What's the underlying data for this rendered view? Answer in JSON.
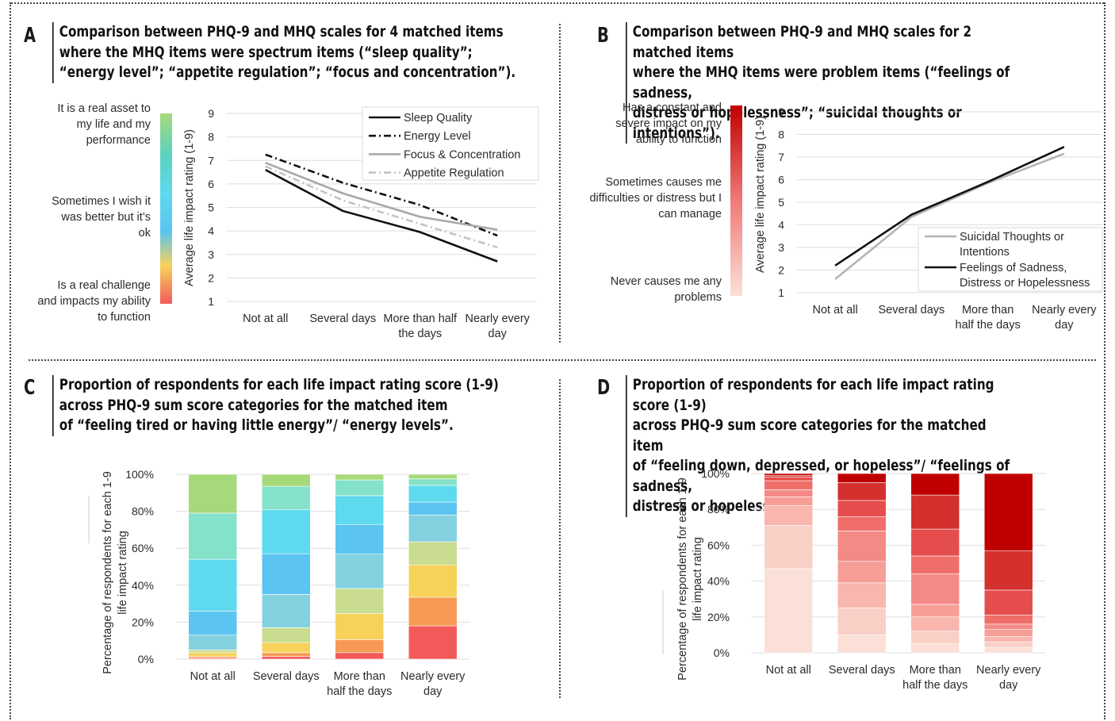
{
  "colors": {
    "asset": "#a6d97a",
    "teal": "#5ad3c0",
    "sky": "#5bc4f0",
    "yellow": "#f7d25a",
    "red": "#f25a5a",
    "red_dark": "#c00000",
    "red_light": "#fbe0d8",
    "line_dark": "#111111",
    "line_grey": "#a8a8a8",
    "line_lightgrey": "#c4c4c4"
  },
  "panels": {
    "A": {
      "letter": "A",
      "heading": "Comparison between PHQ-9 and MHQ scales for 4 matched items\nwhere the MHQ items were spectrum items (“sleep quality”;\n“energy level”; “appetite regulation”; “focus and concentration”).",
      "scale_top": "It is a real asset to my life and my performance",
      "scale_mid": "Sometimes I wish it was better but it’s ok",
      "scale_bottom": "Is a real challenge and impacts my ability to function"
    },
    "B": {
      "letter": "B",
      "heading": "Comparison between PHQ-9 and MHQ scales for 2 matched items\nwhere the MHQ items were problem items (“feelings of sadness,\ndistress or hopelessness”; “suicidal thoughts or intentions”).",
      "scale_top": "Has a constant and severe impact on my ability to function",
      "scale_mid": "Sometimes causes me difficulties or distress but I can manage",
      "scale_bottom": "Never causes me any problems"
    },
    "C": {
      "letter": "C",
      "heading": "Proportion of respondents for each life impact rating score (1-9)\nacross PHQ-9 sum score categories for the matched item\nof “feeling tired or having little energy”/ “energy levels”."
    },
    "D": {
      "letter": "D",
      "heading": "Proportion of respondents for each life impact rating score (1-9)\nacross PHQ-9 sum score categories for the matched item\nof “feeling down, depressed, or hopeless”/ “feelings of sadness,\ndistress or hopelessness”."
    }
  },
  "chart_data": [
    {
      "id": "A",
      "type": "line",
      "categories": [
        "Not at all",
        "Several days",
        "More than half the days",
        "Nearly every day"
      ],
      "ylabel": "Average life impact rating (1-9)",
      "ylim": [
        1,
        9
      ],
      "yticks": [
        "1",
        "2",
        "3",
        "4",
        "5",
        "6",
        "7",
        "8",
        "9"
      ],
      "grid": true,
      "legend": "top-right",
      "series": [
        {
          "name": "Sleep Quality",
          "values": [
            6.6,
            4.85,
            3.95,
            2.7
          ],
          "color": "#111111",
          "style": "solid"
        },
        {
          "name": "Energy Level",
          "values": [
            7.25,
            6.05,
            5.1,
            3.8
          ],
          "color": "#111111",
          "style": "dashdot"
        },
        {
          "name": "Focus & Concentration",
          "values": [
            6.9,
            5.6,
            4.6,
            4.05
          ],
          "color": "#a8a8a8",
          "style": "solid"
        },
        {
          "name": "Appetite Regulation",
          "values": [
            6.75,
            5.3,
            4.3,
            3.3
          ],
          "color": "#c4c4c4",
          "style": "dashdot"
        }
      ]
    },
    {
      "id": "B",
      "type": "line",
      "categories": [
        "Not at all",
        "Several days",
        "More than half the days",
        "Nearly every day"
      ],
      "ylabel": "Average life impact rating (1-9)",
      "ylim": [
        1,
        9
      ],
      "yticks": [
        "1",
        "2",
        "3",
        "4",
        "5",
        "6",
        "7",
        "8",
        "9"
      ],
      "grid": true,
      "legend": "bottom-right",
      "series": [
        {
          "name": "Suicidal Thoughts or Intentions",
          "values": [
            1.6,
            4.35,
            5.85,
            7.15
          ],
          "color": "#b4b4b4",
          "style": "solid"
        },
        {
          "name": "Feelings of Sadness, Distress or Hopelessness",
          "values": [
            2.2,
            4.45,
            5.9,
            7.45
          ],
          "color": "#111111",
          "style": "solid"
        }
      ]
    },
    {
      "id": "C",
      "type": "bar",
      "stacked": true,
      "categories": [
        "Not at all",
        "Several days",
        "More than half the days",
        "Nearly every day"
      ],
      "ylabel": "Percentage of respondents for each 1-9 life impact rating",
      "ylim": [
        0,
        100
      ],
      "yticks": [
        "0%",
        "20%",
        "40%",
        "60%",
        "80%",
        "100%"
      ],
      "grid": true,
      "stack_colors": [
        "#f25a5a",
        "#f89a55",
        "#f7d25a",
        "#c9dc8f",
        "#84d2df",
        "#5bc4f0",
        "#5fd9ee",
        "#83e2c9",
        "#a6d97a"
      ],
      "series": [
        {
          "rating": 1,
          "values": [
            0.5,
            1.5,
            3.5,
            18
          ]
        },
        {
          "rating": 2,
          "values": [
            1,
            2,
            7,
            15.5
          ]
        },
        {
          "rating": 3,
          "values": [
            2,
            5.5,
            14,
            17.5
          ]
        },
        {
          "rating": 4,
          "values": [
            1.5,
            8,
            13.5,
            12.5
          ]
        },
        {
          "rating": 5,
          "values": [
            8,
            18,
            18.5,
            14.5
          ]
        },
        {
          "rating": 6,
          "values": [
            13,
            22,
            16,
            7
          ]
        },
        {
          "rating": 7,
          "values": [
            28,
            24,
            15.5,
            9
          ]
        },
        {
          "rating": 8,
          "values": [
            25,
            12.5,
            8.5,
            3.5
          ]
        },
        {
          "rating": 9,
          "values": [
            21,
            6.5,
            3,
            2.5
          ]
        }
      ]
    },
    {
      "id": "D",
      "type": "bar",
      "stacked": true,
      "categories": [
        "Not at all",
        "Several days",
        "More than half the days",
        "Nearly every day"
      ],
      "ylabel": "Percentage of respondents for each 1-9 life impact rating",
      "ylim": [
        0,
        100
      ],
      "yticks": [
        "0%",
        "20%",
        "40%",
        "60%",
        "80%",
        "100%"
      ],
      "grid": true,
      "stack_colors": [
        "#fbe0d8",
        "#f9cfc6",
        "#f9b6ae",
        "#f79e97",
        "#f48a86",
        "#ef6e6a",
        "#e54d4c",
        "#d3302e",
        "#c00000"
      ],
      "series": [
        {
          "rating": 1,
          "values": [
            47,
            10,
            5,
            3
          ]
        },
        {
          "rating": 2,
          "values": [
            24,
            15,
            7,
            3
          ]
        },
        {
          "rating": 3,
          "values": [
            11,
            14,
            8,
            3
          ]
        },
        {
          "rating": 4,
          "values": [
            5,
            12,
            7,
            4
          ]
        },
        {
          "rating": 5,
          "values": [
            4,
            17,
            17,
            3
          ]
        },
        {
          "rating": 6,
          "values": [
            5,
            8,
            10,
            5
          ]
        },
        {
          "rating": 7,
          "values": [
            2,
            9,
            15,
            14
          ]
        },
        {
          "rating": 8,
          "values": [
            1,
            10,
            19,
            22
          ]
        },
        {
          "rating": 9,
          "values": [
            1,
            5,
            12,
            43
          ]
        }
      ]
    }
  ]
}
